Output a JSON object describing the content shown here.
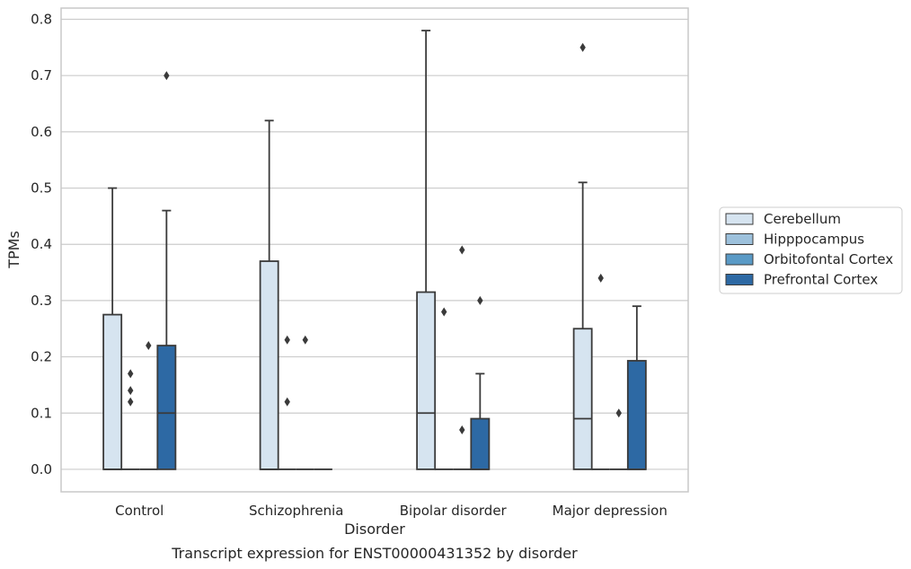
{
  "chart_data": {
    "type": "box",
    "title": "Transcript expression for ENST00000431352 by disorder",
    "xlabel": "Disorder",
    "ylabel": "TPMs",
    "ylim": [
      -0.04,
      0.82
    ],
    "yticks": [
      "0.0",
      "0.1",
      "0.2",
      "0.3",
      "0.4",
      "0.5",
      "0.6",
      "0.7",
      "0.8"
    ],
    "grid": true,
    "legend_position": "right",
    "categories": [
      "Control",
      "Schizophrenia",
      "Bipolar disorder",
      "Major depression"
    ],
    "series": [
      {
        "name": "Cerebellum",
        "color": "#d6e4f0",
        "boxes": [
          {
            "q1": 0.0,
            "median": 0.0,
            "q3": 0.275,
            "whisker_low": 0.0,
            "whisker_high": 0.5,
            "outliers": []
          },
          {
            "q1": 0.0,
            "median": 0.0,
            "q3": 0.37,
            "whisker_low": 0.0,
            "whisker_high": 0.62,
            "outliers": []
          },
          {
            "q1": 0.0,
            "median": 0.1,
            "q3": 0.315,
            "whisker_low": 0.0,
            "whisker_high": 0.78,
            "outliers": []
          },
          {
            "q1": 0.0,
            "median": 0.09,
            "q3": 0.25,
            "whisker_low": 0.0,
            "whisker_high": 0.51,
            "outliers": [
              0.75
            ]
          }
        ]
      },
      {
        "name": "Hipppocampus",
        "color": "#9dc1dc",
        "boxes": [
          {
            "q1": 0.0,
            "median": 0.0,
            "q3": 0.0,
            "whisker_low": 0.0,
            "whisker_high": 0.0,
            "outliers": [
              0.12,
              0.14,
              0.17
            ]
          },
          {
            "q1": 0.0,
            "median": 0.0,
            "q3": 0.0,
            "whisker_low": 0.0,
            "whisker_high": 0.0,
            "outliers": [
              0.12,
              0.23
            ]
          },
          {
            "q1": 0.0,
            "median": 0.0,
            "q3": 0.0,
            "whisker_low": 0.0,
            "whisker_high": 0.0,
            "outliers": [
              0.28
            ]
          },
          {
            "q1": 0.0,
            "median": 0.0,
            "q3": 0.0,
            "whisker_low": 0.0,
            "whisker_high": 0.0,
            "outliers": [
              0.34
            ]
          }
        ]
      },
      {
        "name": "Orbitofontal Cortex",
        "color": "#5a9ac6",
        "boxes": [
          {
            "q1": 0.0,
            "median": 0.0,
            "q3": 0.0,
            "whisker_low": 0.0,
            "whisker_high": 0.0,
            "outliers": [
              0.22
            ]
          },
          {
            "q1": 0.0,
            "median": 0.0,
            "q3": 0.0,
            "whisker_low": 0.0,
            "whisker_high": 0.0,
            "outliers": [
              0.23
            ]
          },
          {
            "q1": 0.0,
            "median": 0.0,
            "q3": 0.0,
            "whisker_low": 0.0,
            "whisker_high": 0.0,
            "outliers": [
              0.07,
              0.39
            ]
          },
          {
            "q1": 0.0,
            "median": 0.0,
            "q3": 0.0,
            "whisker_low": 0.0,
            "whisker_high": 0.0,
            "outliers": [
              0.1
            ]
          }
        ]
      },
      {
        "name": "Prefrontal Cortex",
        "color": "#2d69a4",
        "boxes": [
          {
            "q1": 0.0,
            "median": 0.1,
            "q3": 0.22,
            "whisker_low": 0.0,
            "whisker_high": 0.46,
            "outliers": [
              0.7
            ]
          },
          {
            "q1": 0.0,
            "median": 0.0,
            "q3": 0.0,
            "whisker_low": 0.0,
            "whisker_high": 0.0,
            "outliers": []
          },
          {
            "q1": 0.0,
            "median": 0.0,
            "q3": 0.09,
            "whisker_low": 0.0,
            "whisker_high": 0.17,
            "outliers": [
              0.3
            ]
          },
          {
            "q1": 0.0,
            "median": 0.0,
            "q3": 0.193,
            "whisker_low": 0.0,
            "whisker_high": 0.29,
            "outliers": []
          }
        ]
      }
    ]
  }
}
